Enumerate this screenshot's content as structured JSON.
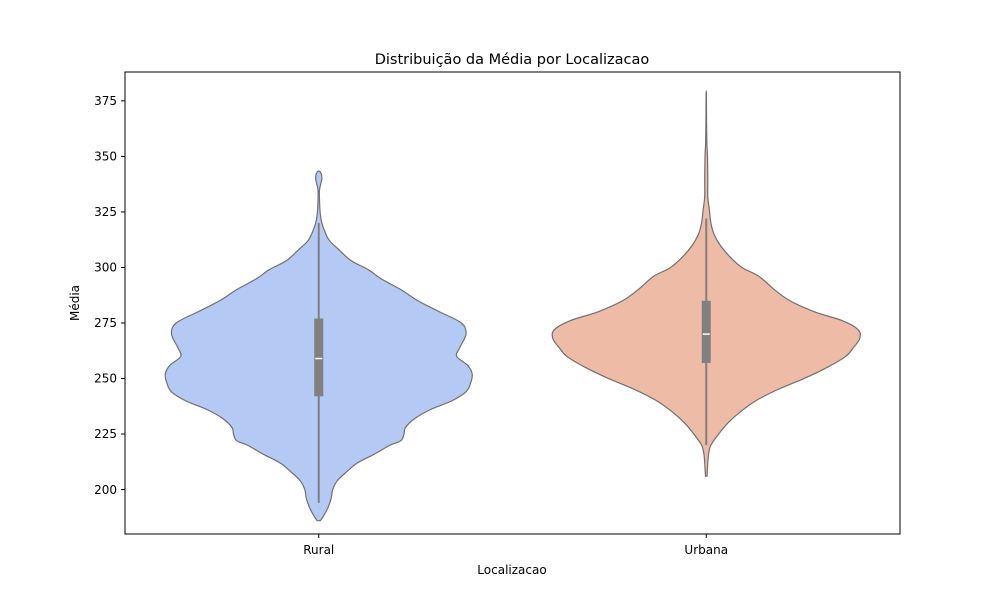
{
  "chart_data": {
    "type": "violin",
    "title": "Distribuição da Média por Localizacao",
    "xlabel": "Localizacao",
    "ylabel": "Média",
    "categories": [
      "Rural",
      "Urbana"
    ],
    "ylim": [
      180,
      388
    ],
    "yticks": [
      200,
      225,
      250,
      275,
      300,
      325,
      350,
      375
    ],
    "grid": false,
    "edge_color": "#707070",
    "box_color": "#808080",
    "median_color": "#ffffff",
    "series": [
      {
        "category": "Rural",
        "color": "#b4c9f4",
        "min": 186,
        "max": 343,
        "whisker_low": 194,
        "whisker_high": 320,
        "q1": 242,
        "median": 259,
        "q3": 277,
        "density": [
          [
            186,
            0.01
          ],
          [
            188,
            0.03
          ],
          [
            192,
            0.06
          ],
          [
            196,
            0.08
          ],
          [
            200,
            0.09
          ],
          [
            204,
            0.12
          ],
          [
            208,
            0.18
          ],
          [
            212,
            0.25
          ],
          [
            216,
            0.36
          ],
          [
            220,
            0.46
          ],
          [
            222,
            0.53
          ],
          [
            225,
            0.55
          ],
          [
            228,
            0.56
          ],
          [
            232,
            0.62
          ],
          [
            236,
            0.72
          ],
          [
            240,
            0.86
          ],
          [
            244,
            0.95
          ],
          [
            248,
            0.98
          ],
          [
            252,
            0.99
          ],
          [
            256,
            0.96
          ],
          [
            260,
            0.89
          ],
          [
            264,
            0.91
          ],
          [
            270,
            0.95
          ],
          [
            275,
            0.92
          ],
          [
            280,
            0.78
          ],
          [
            285,
            0.64
          ],
          [
            290,
            0.53
          ],
          [
            295,
            0.4
          ],
          [
            299,
            0.32
          ],
          [
            303,
            0.21
          ],
          [
            308,
            0.13
          ],
          [
            312,
            0.07
          ],
          [
            316,
            0.04
          ],
          [
            320,
            0.02
          ],
          [
            324,
            0.01
          ],
          [
            330,
            0.005
          ],
          [
            335,
            0.005
          ],
          [
            340,
            0.02
          ],
          [
            343,
            0.01
          ]
        ]
      },
      {
        "category": "Urbana",
        "color": "#eebba6",
        "min": 206,
        "max": 378,
        "whisker_low": 220,
        "whisker_high": 322,
        "q1": 257,
        "median": 270,
        "q3": 285,
        "density": [
          [
            206,
            0.005
          ],
          [
            212,
            0.01
          ],
          [
            216,
            0.015
          ],
          [
            220,
            0.03
          ],
          [
            225,
            0.08
          ],
          [
            230,
            0.14
          ],
          [
            235,
            0.22
          ],
          [
            240,
            0.32
          ],
          [
            245,
            0.46
          ],
          [
            250,
            0.63
          ],
          [
            255,
            0.78
          ],
          [
            260,
            0.9
          ],
          [
            264,
            0.95
          ],
          [
            268,
            0.99
          ],
          [
            272,
            0.98
          ],
          [
            276,
            0.88
          ],
          [
            280,
            0.7
          ],
          [
            285,
            0.54
          ],
          [
            290,
            0.44
          ],
          [
            296,
            0.34
          ],
          [
            300,
            0.23
          ],
          [
            305,
            0.15
          ],
          [
            310,
            0.09
          ],
          [
            315,
            0.05
          ],
          [
            320,
            0.03
          ],
          [
            326,
            0.02
          ],
          [
            332,
            0.01
          ],
          [
            340,
            0.01
          ],
          [
            350,
            0.008
          ],
          [
            356,
            0.004
          ],
          [
            366,
            0.002
          ],
          [
            378,
            0.001
          ]
        ]
      }
    ]
  }
}
